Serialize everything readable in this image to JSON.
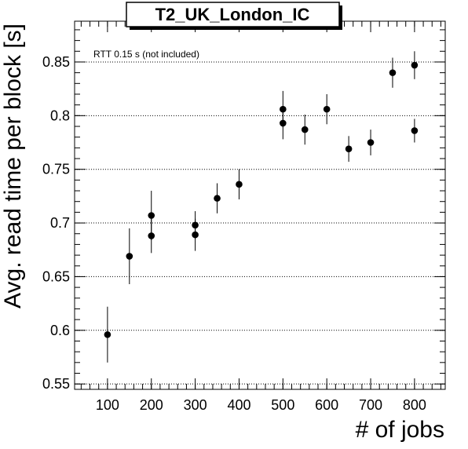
{
  "chart_data": {
    "type": "scatter",
    "title": "T2_UK_London_IC",
    "xlabel": "# of jobs",
    "ylabel": "Avg. read time per block [s]",
    "annotation": "RTT 0.15 s (not included)",
    "xlim": [
      25,
      870
    ],
    "ylim": [
      0.545,
      0.888
    ],
    "x_ticks": [
      100,
      200,
      300,
      400,
      500,
      600,
      700,
      800
    ],
    "x_tick_labels": [
      "100",
      "200",
      "300",
      "400",
      "500",
      "600",
      "700",
      "800"
    ],
    "y_ticks": [
      0.55,
      0.6,
      0.65,
      0.7,
      0.75,
      0.8,
      0.85
    ],
    "y_tick_labels": [
      "0.55",
      "0.6",
      "0.65",
      "0.7",
      "0.75",
      "0.8",
      "0.85"
    ],
    "grid": "horizontal dotted",
    "colors": {
      "marker": "#000000",
      "grid": "#000000"
    },
    "points": [
      {
        "x": 100,
        "y": 0.596,
        "err": 0.026
      },
      {
        "x": 150,
        "y": 0.669,
        "err": 0.026
      },
      {
        "x": 200,
        "y": 0.707,
        "err": 0.023
      },
      {
        "x": 200,
        "y": 0.688,
        "err": 0.016
      },
      {
        "x": 300,
        "y": 0.698,
        "err": 0.013
      },
      {
        "x": 300,
        "y": 0.689,
        "err": 0.015
      },
      {
        "x": 350,
        "y": 0.723,
        "err": 0.014
      },
      {
        "x": 400,
        "y": 0.736,
        "err": 0.014
      },
      {
        "x": 500,
        "y": 0.806,
        "err": 0.017
      },
      {
        "x": 500,
        "y": 0.793,
        "err": 0.015
      },
      {
        "x": 550,
        "y": 0.787,
        "err": 0.014
      },
      {
        "x": 600,
        "y": 0.806,
        "err": 0.014
      },
      {
        "x": 650,
        "y": 0.769,
        "err": 0.012
      },
      {
        "x": 700,
        "y": 0.775,
        "err": 0.012
      },
      {
        "x": 750,
        "y": 0.84,
        "err": 0.014
      },
      {
        "x": 800,
        "y": 0.847,
        "err": 0.013
      },
      {
        "x": 800,
        "y": 0.786,
        "err": 0.011
      }
    ]
  }
}
